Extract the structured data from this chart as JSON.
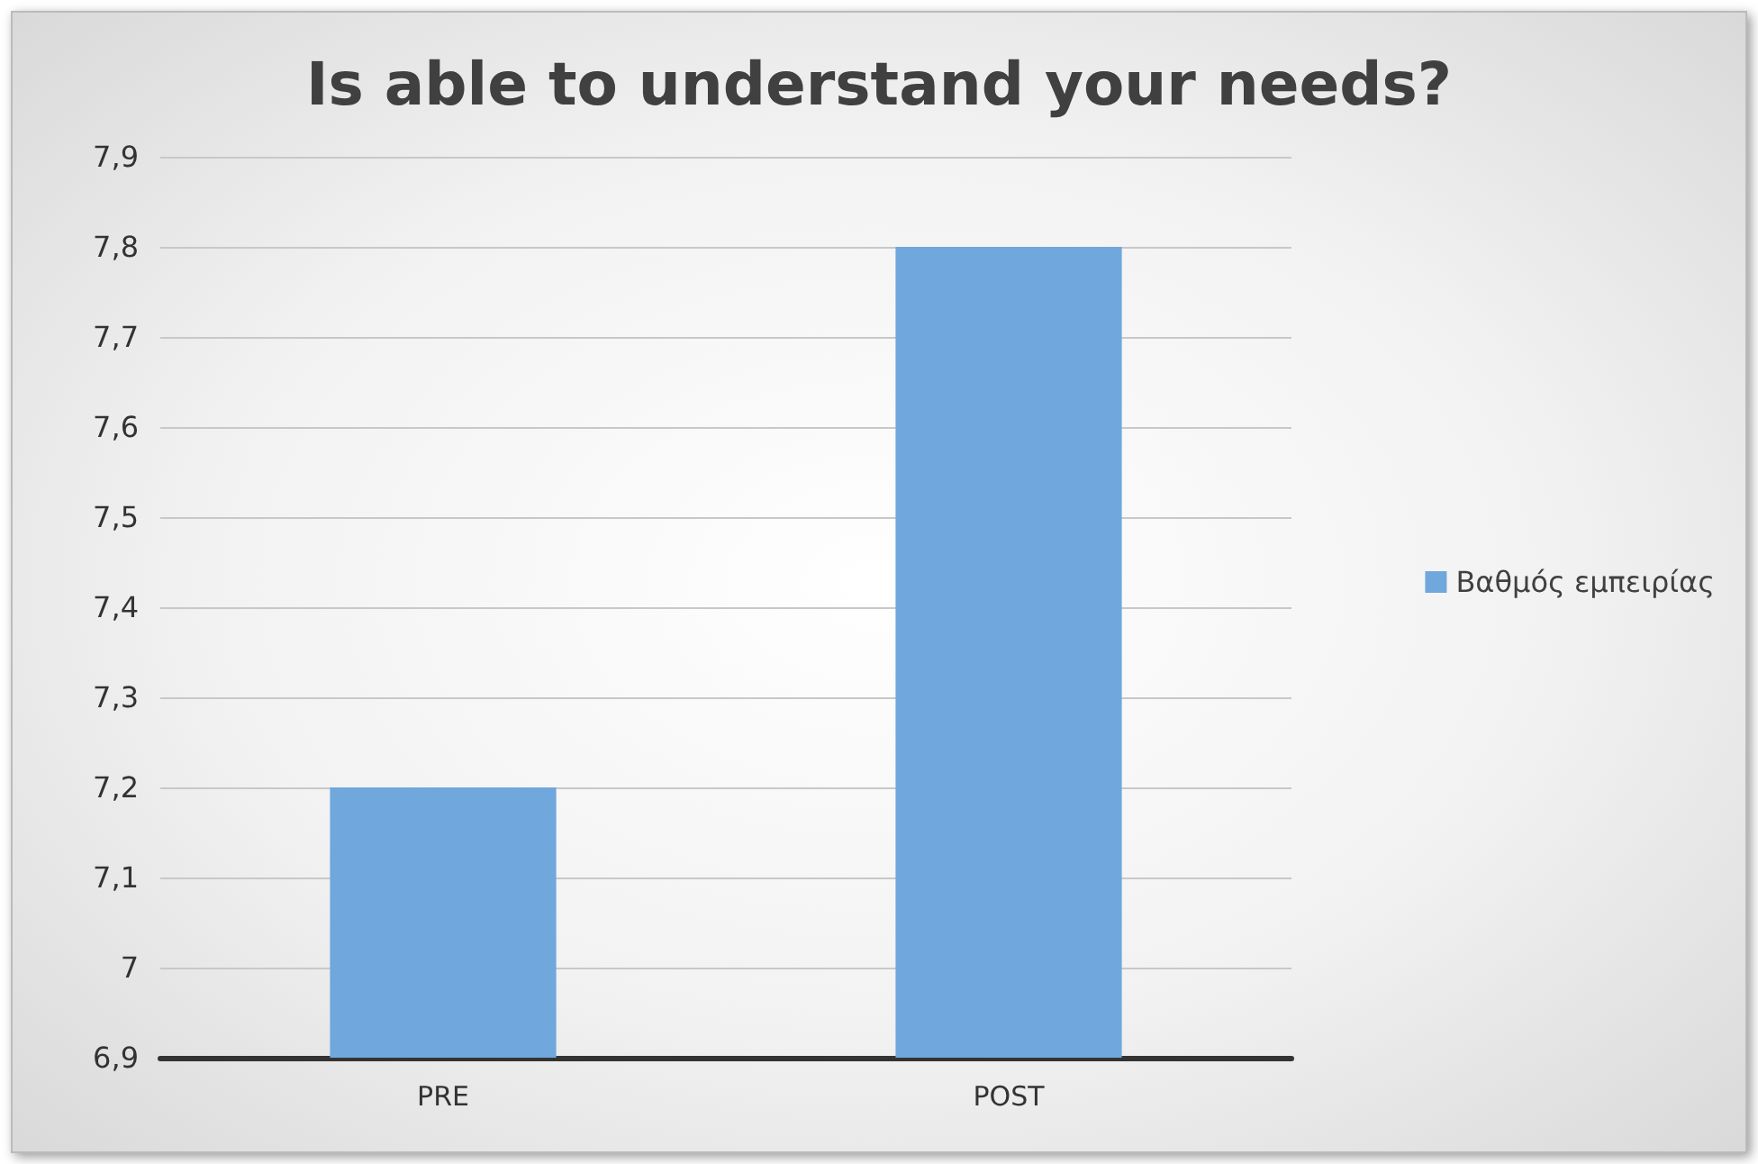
{
  "chart_data": {
    "type": "bar",
    "title": "Is able to understand your needs?",
    "categories": [
      "PRE",
      "POST"
    ],
    "series": [
      {
        "name": "Βαθμός εμπειρίας",
        "color": "#70a7dc",
        "values": [
          7.2,
          7.8
        ]
      }
    ],
    "ylim": [
      6.9,
      7.9
    ],
    "yticks": [
      {
        "value": 6.9,
        "label": "6,9"
      },
      {
        "value": 7,
        "label": "7"
      },
      {
        "value": 7.1,
        "label": "7,1"
      },
      {
        "value": 7.2,
        "label": "7,2"
      },
      {
        "value": 7.3,
        "label": "7,3"
      },
      {
        "value": 7.4,
        "label": "7,4"
      },
      {
        "value": 7.5,
        "label": "7,5"
      },
      {
        "value": 7.6,
        "label": "7,6"
      },
      {
        "value": 7.7,
        "label": "7,7"
      },
      {
        "value": 7.8,
        "label": "7,8"
      },
      {
        "value": 7.9,
        "label": "7,9"
      }
    ],
    "grid": "y",
    "legend": "right"
  }
}
